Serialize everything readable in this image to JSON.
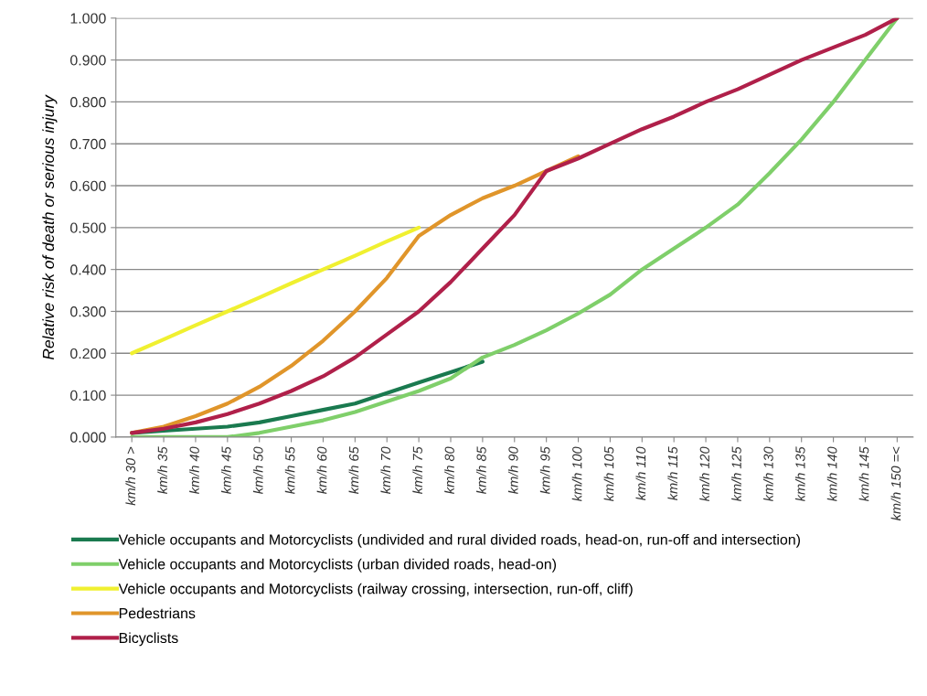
{
  "chart_data": {
    "type": "line",
    "ylabel": "Relative risk of death or serious injury",
    "categories": [
      "km/h 30 >",
      "km/h 35",
      "km/h 40",
      "km/h 45",
      "km/h 50",
      "km/h 55",
      "km/h 60",
      "km/h 65",
      "km/h 70",
      "km/h 75",
      "km/h 80",
      "km/h 85",
      "km/h 90",
      "km/h 95",
      "km/h 100",
      "km/h 105",
      "km/h 110",
      "km/h 115",
      "km/h 120",
      "km/h 125",
      "km/h 130",
      "km/h 135",
      "km/h 140",
      "km/h 145",
      "km/h 150 =<"
    ],
    "series": [
      {
        "name": "Vehicle occupants and Motorcyclists (undivided and rural divided roads, head-on, run-off and intersection)",
        "color": "#1a7a4f",
        "values": [
          0.01,
          0.015,
          0.02,
          0.025,
          0.035,
          0.05,
          0.065,
          0.08,
          0.105,
          0.13,
          0.155,
          0.18,
          null,
          null,
          null,
          null,
          null,
          null,
          null,
          null,
          null,
          null,
          null,
          null,
          null
        ]
      },
      {
        "name": "Vehicle occupants and Motorcyclists (urban divided roads, head-on)",
        "color": "#7fcf6a",
        "values": [
          0.0,
          0.0,
          0.0,
          0.0,
          0.01,
          0.025,
          0.04,
          0.06,
          0.085,
          0.11,
          0.14,
          0.19,
          0.22,
          0.255,
          0.295,
          0.34,
          0.4,
          0.45,
          0.5,
          0.555,
          0.63,
          0.71,
          0.8,
          0.9,
          1.0
        ]
      },
      {
        "name": "Vehicle occupants and Motorcyclists (railway crossing, intersection, run-off, cliff)",
        "color": "#f0f030",
        "values": [
          0.2,
          0.233,
          0.267,
          0.3,
          0.333,
          0.367,
          0.4,
          0.433,
          0.467,
          0.5,
          null,
          null,
          null,
          null,
          null,
          null,
          null,
          null,
          null,
          null,
          null,
          null,
          null,
          null,
          null
        ]
      },
      {
        "name": "Pedestrians",
        "color": "#e0952a",
        "values": [
          0.01,
          0.025,
          0.05,
          0.08,
          0.12,
          0.17,
          0.23,
          0.3,
          0.38,
          0.48,
          0.53,
          0.57,
          0.6,
          0.635,
          0.67,
          null,
          null,
          null,
          null,
          null,
          null,
          null,
          null,
          null,
          null
        ]
      },
      {
        "name": "Bicyclists",
        "color": "#b0204a",
        "values": [
          0.01,
          0.02,
          0.035,
          0.055,
          0.08,
          0.11,
          0.145,
          0.19,
          0.245,
          0.3,
          0.37,
          0.45,
          0.53,
          0.635,
          0.665,
          0.7,
          0.735,
          0.765,
          0.8,
          0.83,
          0.865,
          0.9,
          0.93,
          0.96,
          1.0
        ]
      }
    ],
    "ylim": [
      0,
      1
    ],
    "yticks": [
      {
        "value": 0,
        "label": "0.000"
      },
      {
        "value": 0.1,
        "label": "0.100"
      },
      {
        "value": 0.2,
        "label": "0.200"
      },
      {
        "value": 0.3,
        "label": "0.300"
      },
      {
        "value": 0.4,
        "label": "0.400"
      },
      {
        "value": 0.5,
        "label": "0.500"
      },
      {
        "value": 0.6,
        "label": "0.600"
      },
      {
        "value": 0.7,
        "label": "0.700"
      },
      {
        "value": 0.8,
        "label": "0.800"
      },
      {
        "value": 0.9,
        "label": "0.900"
      },
      {
        "value": 1,
        "label": "1.000"
      }
    ],
    "grid": "y",
    "legend": "bottom",
    "marker": "none",
    "line_style": "solid"
  }
}
